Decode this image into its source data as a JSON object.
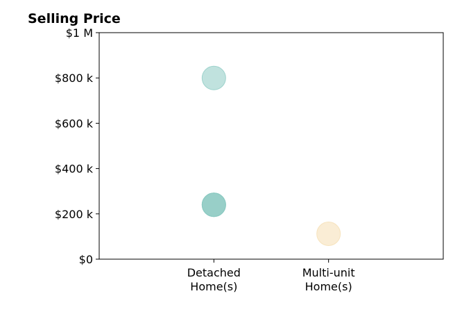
{
  "chart_data": {
    "type": "scatter",
    "title": "Selling Price",
    "categories": [
      "Detached\nHome(s)",
      "Multi-unit\nHome(s)"
    ],
    "y_ticks": [
      "$0",
      "$200 k",
      "$400 k",
      "$600 k",
      "$800 k",
      "$1 M"
    ],
    "ylim": [
      0,
      1000000
    ],
    "grid": false,
    "points": [
      {
        "category": "Detached\nHome(s)",
        "y": 800000,
        "color": "#8ccbc3"
      },
      {
        "category": "Detached\nHome(s)",
        "y": 240000,
        "color": "#5fb3a6"
      },
      {
        "category": "Detached\nHome(s)",
        "y": 240000,
        "color": "#8ccbc3"
      },
      {
        "category": "Multi-unit\nHome(s)",
        "y": 112000,
        "color": "#f5deb3"
      }
    ]
  }
}
